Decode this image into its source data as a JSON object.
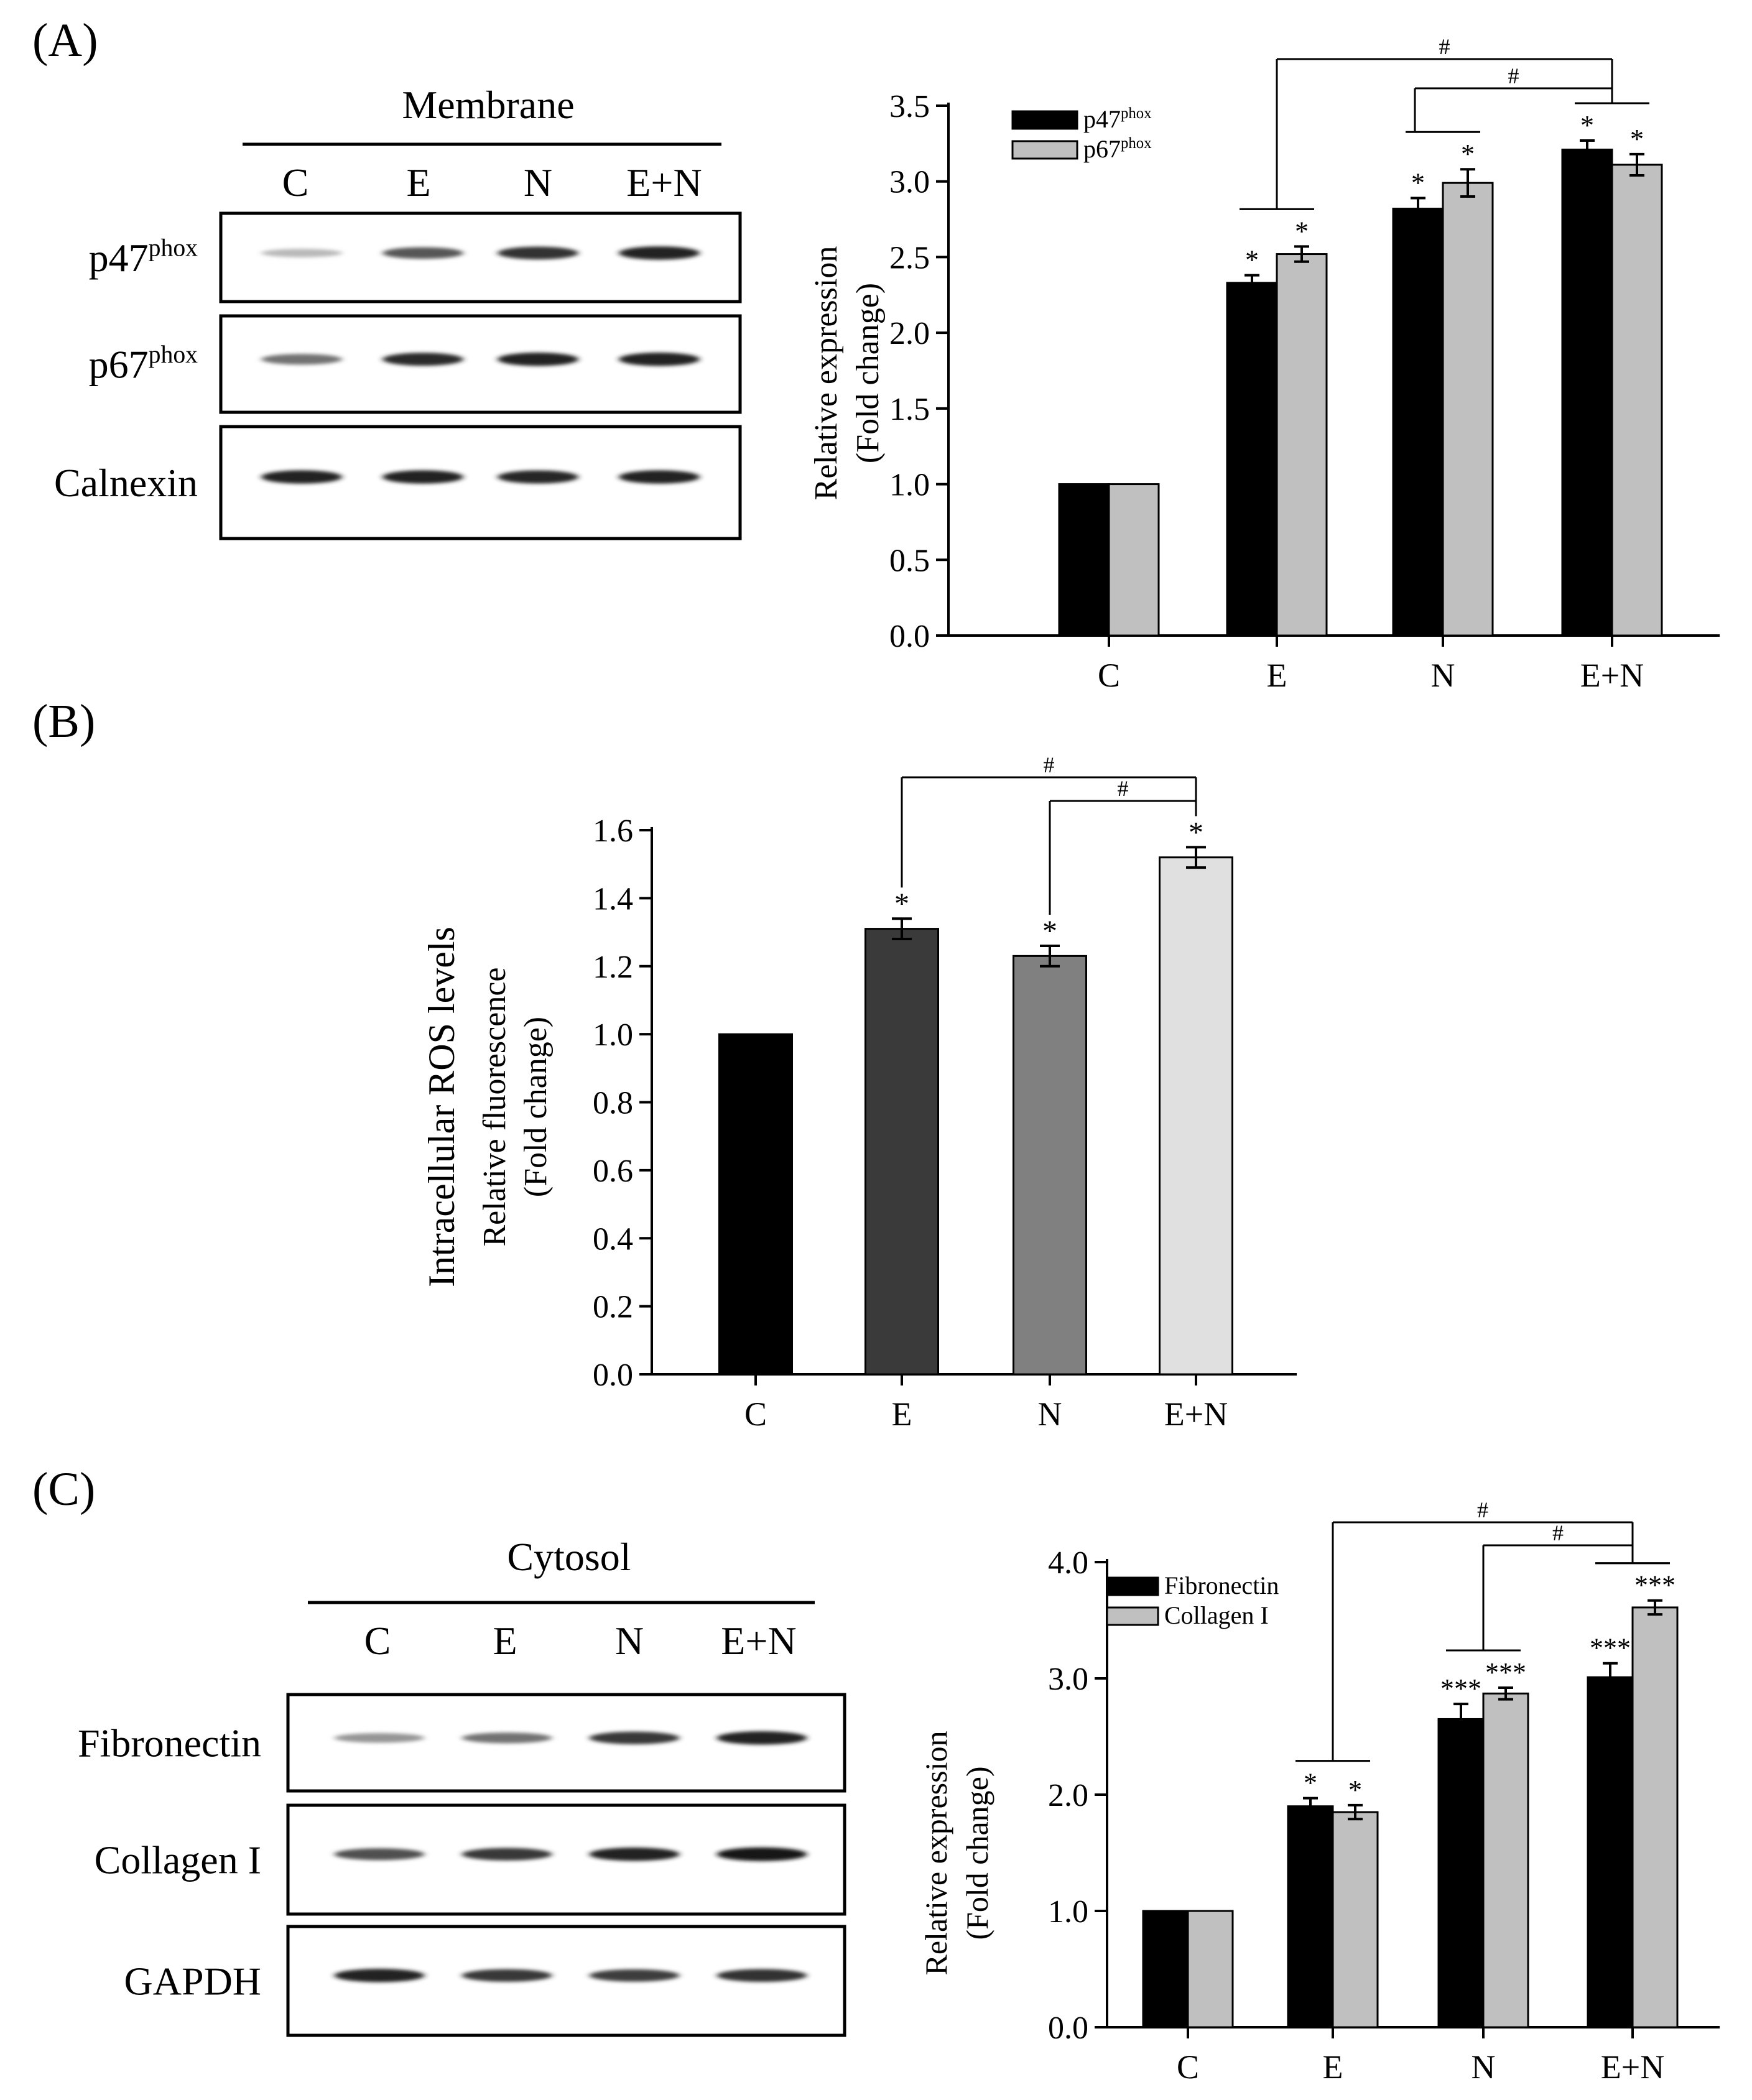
{
  "panels": {
    "A": {
      "label": "(A)",
      "blot": {
        "title": "Membrane",
        "lanes": [
          "C",
          "E",
          "N",
          "E+N"
        ],
        "rows": [
          {
            "name": "p47",
            "sup": "phox",
            "intensity": [
              0.3,
              0.72,
              0.88,
              0.95
            ]
          },
          {
            "name": "p67",
            "sup": "phox",
            "intensity": [
              0.6,
              0.9,
              0.95,
              0.95
            ]
          },
          {
            "name": "Calnexin",
            "sup": "",
            "intensity": [
              0.95,
              0.95,
              0.92,
              0.95
            ]
          }
        ]
      }
    },
    "B": {
      "label": "(B)"
    },
    "C": {
      "label": "(C)",
      "blot": {
        "title": "Cytosol",
        "lanes": [
          "C",
          "E",
          "N",
          "E+N"
        ],
        "rows": [
          {
            "name": "Fibronectin",
            "sup": "",
            "intensity": [
              0.45,
              0.6,
              0.85,
              0.95
            ]
          },
          {
            "name": "Collagen I",
            "sup": "",
            "intensity": [
              0.75,
              0.85,
              0.95,
              1.0
            ]
          },
          {
            "name": "GAPDH",
            "sup": "",
            "intensity": [
              0.95,
              0.85,
              0.82,
              0.88
            ]
          }
        ]
      }
    }
  },
  "chart_data": [
    {
      "id": "A",
      "type": "bar",
      "categories": [
        "C",
        "E",
        "N",
        "E+N"
      ],
      "series": [
        {
          "name": "p47",
          "sup": "phox",
          "color": "#000000",
          "values": [
            1.0,
            2.33,
            2.82,
            3.21
          ],
          "errors": [
            0,
            0.05,
            0.07,
            0.06
          ],
          "marks": [
            "",
            "*",
            "*",
            "*"
          ]
        },
        {
          "name": "p67",
          "sup": "phox",
          "color": "#c0c0c0",
          "values": [
            1.0,
            2.52,
            2.99,
            3.11
          ],
          "errors": [
            0,
            0.05,
            0.09,
            0.07
          ],
          "marks": [
            "",
            "*",
            "*",
            "*"
          ]
        }
      ],
      "ylim": [
        0,
        3.5
      ],
      "yticks": [
        "0.0",
        "0.5",
        "1.0",
        "1.5",
        "2.0",
        "2.5",
        "3.0",
        "3.5"
      ],
      "ylabel": [
        "Relative expression",
        "(Fold change)"
      ],
      "xlabel": "",
      "legend": "top-left",
      "brackets": [
        {
          "from": 1,
          "to": 3,
          "label": "#"
        },
        {
          "from": 2,
          "to": 3,
          "label": "#"
        }
      ]
    },
    {
      "id": "B",
      "type": "bar",
      "categories": [
        "C",
        "E",
        "N",
        "E+N"
      ],
      "colors": [
        "#000000",
        "#3a3a3a",
        "#808080",
        "#e0e0e0"
      ],
      "values": [
        1.0,
        1.31,
        1.23,
        1.52
      ],
      "errors": [
        0,
        0.03,
        0.03,
        0.03
      ],
      "marks": [
        "",
        "*",
        "*",
        "*"
      ],
      "ylim": [
        0,
        1.6
      ],
      "yticks": [
        "0.0",
        "0.2",
        "0.4",
        "0.6",
        "0.8",
        "1.0",
        "1.2",
        "1.4",
        "1.6"
      ],
      "ylabel": [
        "Intracellular ROS levels",
        "Relative fluorescence",
        "(Fold change)"
      ],
      "xlabel": "",
      "brackets": [
        {
          "from": 1,
          "to": 3,
          "label": "#"
        },
        {
          "from": 2,
          "to": 3,
          "label": "#"
        }
      ]
    },
    {
      "id": "C",
      "type": "bar",
      "categories": [
        "C",
        "E",
        "N",
        "E+N"
      ],
      "series": [
        {
          "name": "Fibronectin",
          "sup": "",
          "color": "#000000",
          "values": [
            1.0,
            1.9,
            2.65,
            3.01
          ],
          "errors": [
            0,
            0.07,
            0.13,
            0.12
          ],
          "marks": [
            "",
            "*",
            "***",
            "***"
          ]
        },
        {
          "name": "Collagen I",
          "sup": "",
          "color": "#c0c0c0",
          "values": [
            1.0,
            1.85,
            2.87,
            3.61
          ],
          "errors": [
            0,
            0.06,
            0.05,
            0.06
          ],
          "marks": [
            "",
            "*",
            "***",
            "***"
          ]
        }
      ],
      "ylim": [
        0,
        4.0
      ],
      "yticks": [
        "0.0",
        "1.0",
        "2.0",
        "3.0",
        "4.0"
      ],
      "ylabel": [
        "Relative expression",
        "(Fold change)"
      ],
      "xlabel": "",
      "legend": "top-left",
      "brackets": [
        {
          "from": 1,
          "to": 3,
          "label": "#"
        },
        {
          "from": 2,
          "to": 3,
          "label": "#"
        }
      ]
    }
  ]
}
